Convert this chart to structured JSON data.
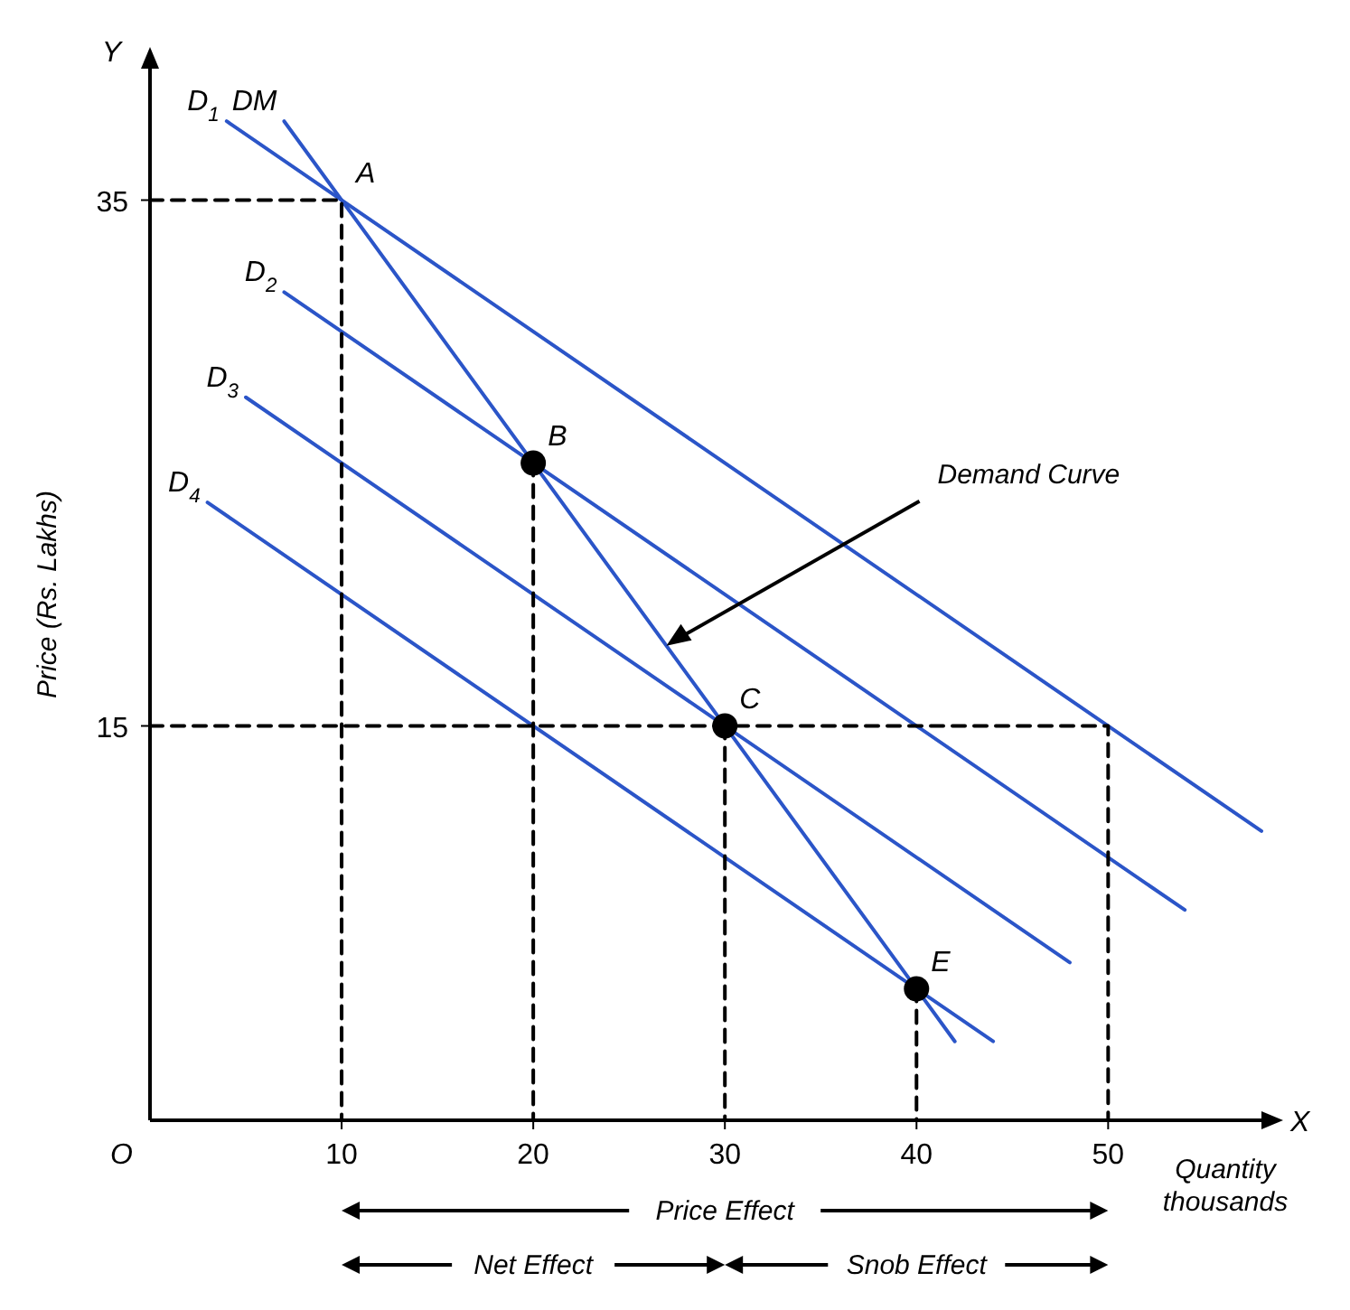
{
  "chart_data": {
    "type": "line",
    "xlabel": "Quantity thousands",
    "ylabel": "Price (Rs. Lakhs)",
    "xlim": [
      0,
      58
    ],
    "ylim": [
      0,
      40
    ],
    "xticks": [
      10,
      20,
      30,
      40,
      50
    ],
    "yticks": [
      15,
      35
    ],
    "grid": false,
    "legend": false,
    "marker": "none",
    "series": [
      {
        "name": "D$_{1}$",
        "color": "#2b55c8",
        "x": [
          4,
          58
        ],
        "values": [
          38,
          11
        ]
      },
      {
        "name": "DM",
        "color": "#2b55c8",
        "x": [
          7,
          42
        ],
        "values": [
          38,
          3
        ]
      },
      {
        "name": "D$_{2}$",
        "color": "#2b55c8",
        "x": [
          7,
          54
        ],
        "values": [
          31.5,
          8
        ]
      },
      {
        "name": "D$_{3}$",
        "color": "#2b55c8",
        "x": [
          5,
          48
        ],
        "values": [
          27.5,
          6
        ]
      },
      {
        "name": "D$_{4}$",
        "color": "#2b55c8",
        "x": [
          3,
          44
        ],
        "values": [
          23.5,
          3
        ]
      },
      {
        "color": "#000000",
        "line_style": "dashed",
        "x": [
          0,
          10,
          10
        ],
        "values": [
          35,
          35,
          0
        ]
      },
      {
        "color": "#000000",
        "line_style": "dashed",
        "x": [
          20,
          20
        ],
        "values": [
          25,
          0
        ]
      },
      {
        "color": "#000000",
        "line_style": "dashed",
        "x": [
          0,
          50,
          50
        ],
        "values": [
          15,
          15,
          0
        ]
      },
      {
        "color": "#000000",
        "line_style": "dashed",
        "x": [
          30,
          30
        ],
        "values": [
          15,
          0
        ]
      },
      {
        "color": "#000000",
        "line_style": "dashed",
        "x": [
          40,
          40
        ],
        "values": [
          5,
          0
        ]
      },
      {
        "type": "scatter",
        "marker": "circle",
        "color": "#000000",
        "x": [
          20,
          30,
          40
        ],
        "values": [
          25,
          15,
          5
        ]
      }
    ],
    "annotations": [
      {
        "text": "A",
        "x": 10,
        "y": 35
      },
      {
        "text": "B",
        "x": 20,
        "y": 25
      },
      {
        "text": "C",
        "x": 30,
        "y": 15
      },
      {
        "text": "E",
        "x": 40,
        "y": 5
      },
      "Y",
      "X",
      "O",
      "Price Effect",
      "Net Effect",
      "Snob Effect",
      "Demand Curve"
    ]
  }
}
